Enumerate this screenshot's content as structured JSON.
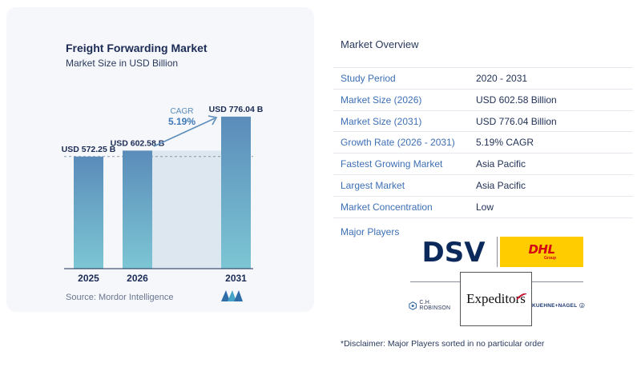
{
  "chart": {
    "title": "Freight Forwarding Market",
    "subtitle": "Market Size in USD Billion",
    "source": "Source:  Mordor Intelligence",
    "cagr_label": "CAGR",
    "cagr_value": "5.19%"
  },
  "chart_data": {
    "type": "bar",
    "title": "Freight Forwarding Market",
    "subtitle": "Market Size in USD Billion",
    "categories": [
      "2025",
      "2026",
      "2031"
    ],
    "values": [
      572.25,
      602.58,
      776.04
    ],
    "data_labels": [
      "USD 572.25 B",
      "USD 602.58 B",
      "USD 776.04 B"
    ],
    "annotation": {
      "label": "CAGR",
      "value": "5.19%"
    },
    "grid": false,
    "colors": {
      "bar_top": "#5b8cba",
      "bar_bottom": "#7cc6d4",
      "band": "#dde7f0"
    }
  },
  "overview": {
    "title": "Market Overview",
    "rows": [
      {
        "label": "Study Period",
        "value": "2020 - 2031"
      },
      {
        "label": "Market Size (2026)",
        "value": "USD 602.58 Billion"
      },
      {
        "label": "Market Size (2031)",
        "value": "USD 776.04 Billion"
      },
      {
        "label": "Growth Rate (2026 - 2031)",
        "value": "5.19% CAGR"
      },
      {
        "label": "Fastest Growing Market",
        "value": "Asia Pacific"
      },
      {
        "label": "Largest Market",
        "value": "Asia Pacific"
      },
      {
        "label": "Market Concentration",
        "value": "Low"
      }
    ],
    "players_label": "Major Players",
    "players": {
      "dsv": "DSV",
      "dhl": "DHL",
      "dhl_group": "Group",
      "expeditors": "Expeditors",
      "chr": "C.H. ROBINSON",
      "kn": "KUEHNE+NAGEL"
    },
    "disclaimer": "*Disclaimer: Major Players sorted in no particular order"
  },
  "icons": {
    "brand_logo": "mordor-intelligence-logo-icon",
    "chr_logo": "chr-hexagon-icon",
    "kn_logo": "anchor-icon"
  }
}
